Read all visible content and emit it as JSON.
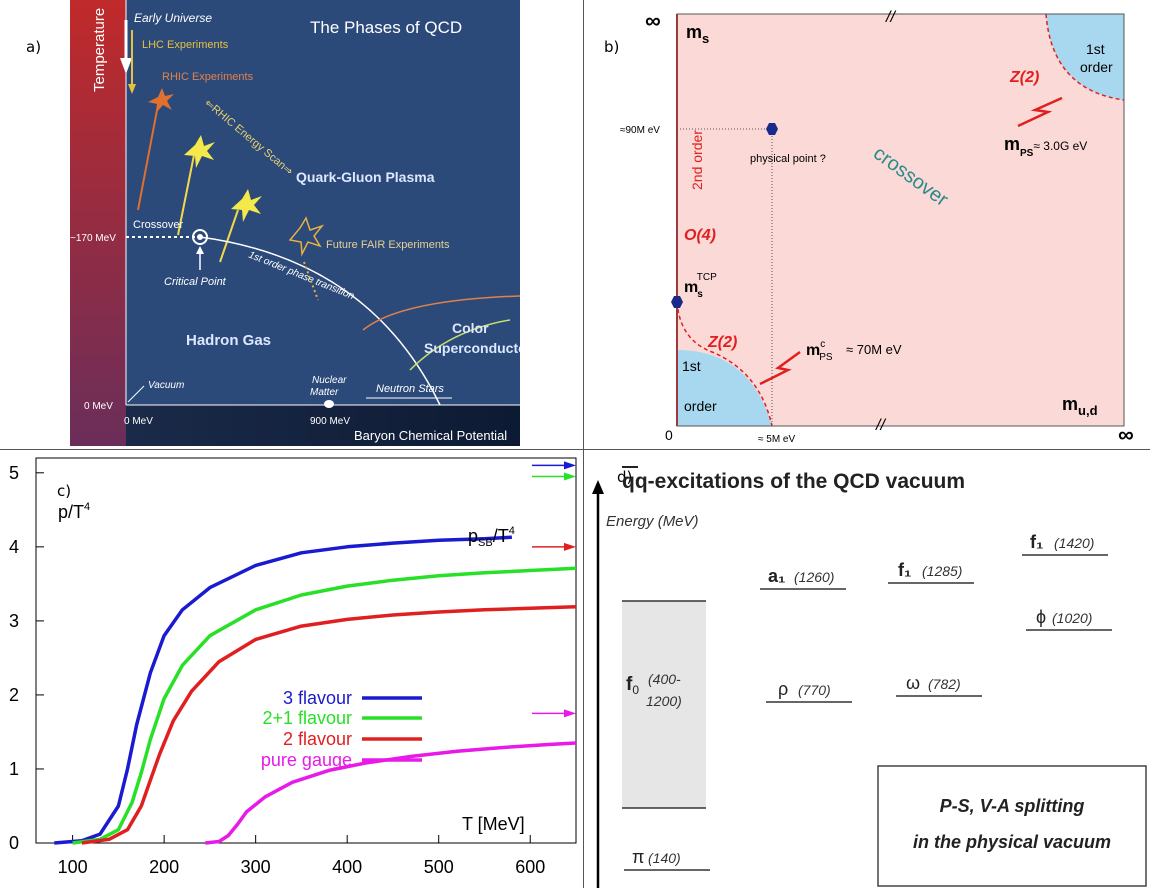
{
  "panel_labels": {
    "a": "a)",
    "b": "b)",
    "c": "c)",
    "d": "d)"
  },
  "panel_a": {
    "title": "The Phases of QCD",
    "temperature_axis": "Temperature",
    "baryon_axis": "Baryon Chemical Potential",
    "early_universe": "Early Universe",
    "lhc": "LHC Experiments",
    "rhic": "RHIC Experiments",
    "rhic_scan": "⇐RHIC Energy Scan⇒",
    "qgp": "Quark-Gluon Plasma",
    "crossover": "Crossover",
    "t170": "~170 MeV",
    "fair": "Future FAIR Experiments",
    "first_order": "1st order phase transition",
    "critical_point": "Critical Point",
    "hadron_gas": "Hadron Gas",
    "color_super_1": "Color",
    "color_super_2": "Superconductor",
    "nuclear_1": "Nuclear",
    "nuclear_2": "Matter",
    "neutron_stars": "Neutron Stars",
    "vacuum": "Vacuum",
    "zero_mev_y": "0 MeV",
    "zero_mev_x": "0 MeV",
    "mev900": "900 MeV",
    "colors": {
      "bg": "#2b4a7a",
      "accent": "#f5d84a",
      "orange": "#e0824a"
    }
  },
  "panel_b": {
    "inf_tl": "∞",
    "inf_br": "∞",
    "zero": "0",
    "ms": "m",
    "ms_sub": "s",
    "mud": "m",
    "mud_sub": "u,d",
    "first_order_tr_1": "1st",
    "first_order_tr_2": "order",
    "first_order_bl_1": "1st",
    "first_order_bl_2": "order",
    "z2_top": "Z(2)",
    "z2_bottom": "Z(2)",
    "mps_top": "m",
    "mps_top_sub": "PS",
    "mps_top_val": "≈ 3.0G eV",
    "mps_bot": "m",
    "mps_bot_sup": "c",
    "mps_bot_sub": "PS",
    "mps_bot_val": "≈  70M eV",
    "mev90": "≈90M eV",
    "mev5": "≈ 5M eV",
    "physical_point": "physical point ?",
    "second_order": "2nd order",
    "o4": "O(4)",
    "crossover": "crossover",
    "mstcp": "m",
    "mstcp_sub": "s",
    "mstcp_sup": "TCP",
    "colors": {
      "bg": "#fbd9d6",
      "blue": "#a8d8f0",
      "red": "#e02020",
      "teal": "#2a8a8a"
    }
  },
  "panel_c": {
    "ylabel": "p/T",
    "ylabel_sup": "4",
    "psb": "p",
    "psb_sub": "SB",
    "psb_tail": "/T",
    "psb_sup": "4",
    "xlabel": "T [MeV]",
    "chart_data": {
      "type": "line",
      "xlim": [
        60,
        650
      ],
      "ylim": [
        0,
        5.2
      ],
      "xticks": [
        100,
        200,
        300,
        400,
        500,
        600
      ],
      "yticks": [
        0,
        1,
        2,
        3,
        4,
        5
      ],
      "series": [
        {
          "name": "3 flavour",
          "color": "#1a1ad0",
          "x": [
            80,
            110,
            130,
            150,
            160,
            170,
            185,
            200,
            220,
            250,
            300,
            350,
            400,
            450,
            500,
            550,
            580
          ],
          "y": [
            0,
            0.03,
            0.12,
            0.5,
            1.0,
            1.6,
            2.3,
            2.8,
            3.15,
            3.45,
            3.75,
            3.92,
            4.0,
            4.05,
            4.09,
            4.11,
            4.13
          ],
          "sb": 5.1
        },
        {
          "name": "2+1 flavour",
          "color": "#28e028",
          "x": [
            100,
            130,
            150,
            165,
            175,
            185,
            200,
            220,
            250,
            300,
            350,
            400,
            450,
            500,
            550,
            600,
            650
          ],
          "y": [
            0,
            0.05,
            0.18,
            0.55,
            0.95,
            1.4,
            1.95,
            2.4,
            2.8,
            3.15,
            3.35,
            3.47,
            3.55,
            3.61,
            3.65,
            3.68,
            3.71
          ],
          "sb": 4.95
        },
        {
          "name": "2 flavour",
          "color": "#e02020",
          "x": [
            110,
            140,
            160,
            175,
            185,
            195,
            210,
            230,
            260,
            300,
            350,
            400,
            450,
            500,
            550,
            600,
            650
          ],
          "y": [
            0,
            0.05,
            0.18,
            0.5,
            0.85,
            1.2,
            1.65,
            2.05,
            2.45,
            2.75,
            2.93,
            3.02,
            3.08,
            3.12,
            3.15,
            3.17,
            3.19
          ],
          "sb": 4.0
        },
        {
          "name": "pure gauge",
          "color": "#e81ae8",
          "x": [
            245,
            260,
            270,
            280,
            290,
            310,
            340,
            380,
            420,
            470,
            520,
            570,
            620,
            650
          ],
          "y": [
            0,
            0.02,
            0.1,
            0.25,
            0.42,
            0.62,
            0.82,
            0.98,
            1.08,
            1.17,
            1.24,
            1.29,
            1.33,
            1.35
          ],
          "sb": 1.75
        }
      ]
    }
  },
  "panel_d": {
    "title": "qq-excitations of the QCD vacuum",
    "energy": "Energy (MeV)",
    "states": [
      {
        "name": "a₁",
        "mass": "(1260)"
      },
      {
        "name": "f₁",
        "mass": "(1285)"
      },
      {
        "name": "f₁",
        "mass": "(1420)"
      },
      {
        "name": "ϕ",
        "mass": "(1020)"
      },
      {
        "name": "ρ",
        "mass": "(770)"
      },
      {
        "name": "ω",
        "mass": "(782)"
      },
      {
        "name": "π",
        "mass": "(140)"
      }
    ],
    "f0_name": "f",
    "f0_sub": "0",
    "f0_mass_1": "(400-",
    "f0_mass_2": "1200)",
    "box_line1": "P-S, V-A splitting",
    "box_line2": "in the physical vacuum"
  }
}
